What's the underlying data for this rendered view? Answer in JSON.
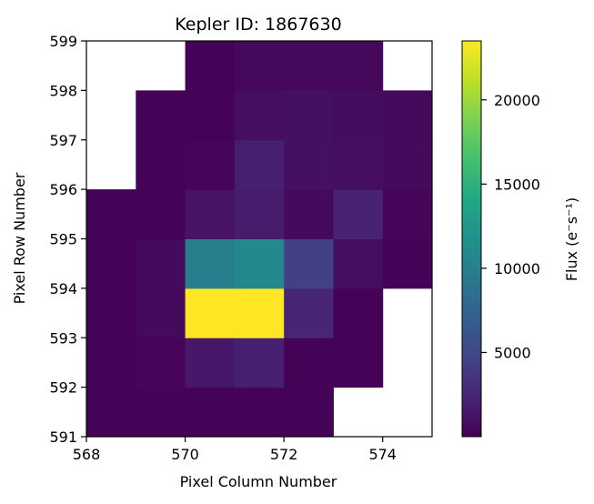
{
  "chart_data": {
    "type": "heatmap",
    "title": "Kepler ID: 1867630",
    "xlabel": "Pixel Column Number",
    "ylabel": "Pixel Row Number",
    "colorbar_label": "Flux (e⁻s⁻¹)",
    "colormap": "viridis",
    "xlim": [
      568,
      575
    ],
    "ylim": [
      591,
      599
    ],
    "x_ticks": [
      568,
      570,
      572,
      574
    ],
    "x_tick_labels": [
      "568",
      "570",
      "572",
      "574"
    ],
    "y_ticks": [
      591,
      592,
      593,
      594,
      595,
      596,
      597,
      598,
      599
    ],
    "y_tick_labels": [
      "591",
      "592",
      "593",
      "594",
      "595",
      "596",
      "597",
      "598",
      "599"
    ],
    "colorbar_range": [
      0,
      23500
    ],
    "colorbar_ticks": [
      5000,
      10000,
      15000,
      20000
    ],
    "colorbar_tick_labels": [
      "5000",
      "10000",
      "15000",
      "20000"
    ],
    "columns": [
      568,
      569,
      570,
      571,
      572,
      573,
      574
    ],
    "rows": [
      591,
      592,
      593,
      594,
      595,
      596,
      597,
      598
    ],
    "values": [
      [
        150,
        150,
        150,
        150,
        150,
        null,
        null
      ],
      [
        150,
        300,
        1500,
        2000,
        150,
        150,
        null
      ],
      [
        150,
        600,
        23500,
        23500,
        2500,
        150,
        null
      ],
      [
        150,
        600,
        10000,
        11000,
        4500,
        900,
        150
      ],
      [
        150,
        150,
        1200,
        1800,
        600,
        2200,
        350
      ],
      [
        null,
        150,
        350,
        2000,
        1000,
        900,
        600
      ],
      [
        null,
        150,
        150,
        900,
        1000,
        800,
        600
      ],
      [
        null,
        null,
        150,
        500,
        500,
        500,
        null
      ]
    ]
  }
}
